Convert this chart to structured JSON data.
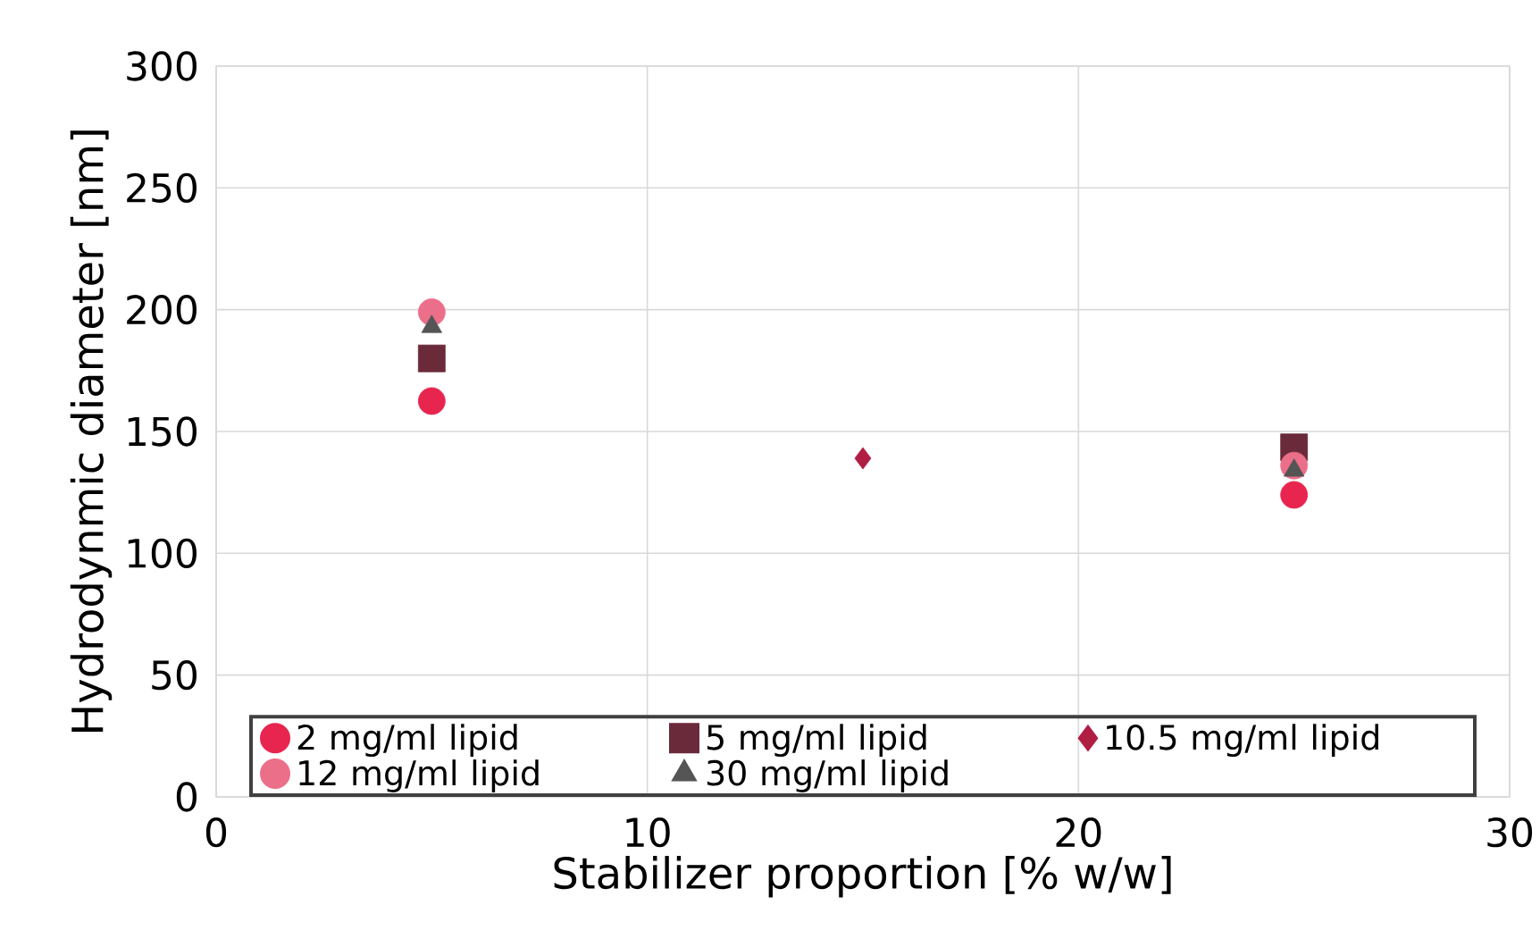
{
  "chart_data": {
    "type": "scatter",
    "xlabel": "Stabilizer proportion [% w/w]",
    "ylabel": "Hydrodynmic diameter [nm]",
    "xlim": [
      0,
      30
    ],
    "ylim": [
      0,
      300
    ],
    "xticks": [
      0,
      10,
      20,
      30
    ],
    "yticks": [
      0,
      50,
      100,
      150,
      200,
      250,
      300
    ],
    "grid": true,
    "legend": "bottom",
    "series": [
      {
        "name": "2 mg/ml lipid",
        "color": "#e8254f",
        "marker": "circle",
        "x": [
          5,
          25
        ],
        "values": [
          162.5,
          124
        ]
      },
      {
        "name": "5 mg/ml lipid",
        "color": "#6b2a3a",
        "marker": "square",
        "x": [
          5,
          25
        ],
        "values": [
          180,
          143.5
        ]
      },
      {
        "name": "10.5 mg/ml lipid",
        "color": "#b01e43",
        "marker": "diamond",
        "x": [
          15
        ],
        "values": [
          139
        ]
      },
      {
        "name": "12 mg/ml lipid",
        "color": "#ec6f8a",
        "marker": "circle",
        "x": [
          5,
          25
        ],
        "values": [
          199,
          136
        ]
      },
      {
        "name": "30 mg/ml lipid",
        "color": "#555555",
        "marker": "triangle",
        "x": [
          5,
          25
        ],
        "values": [
          193,
          134
        ]
      }
    ]
  }
}
